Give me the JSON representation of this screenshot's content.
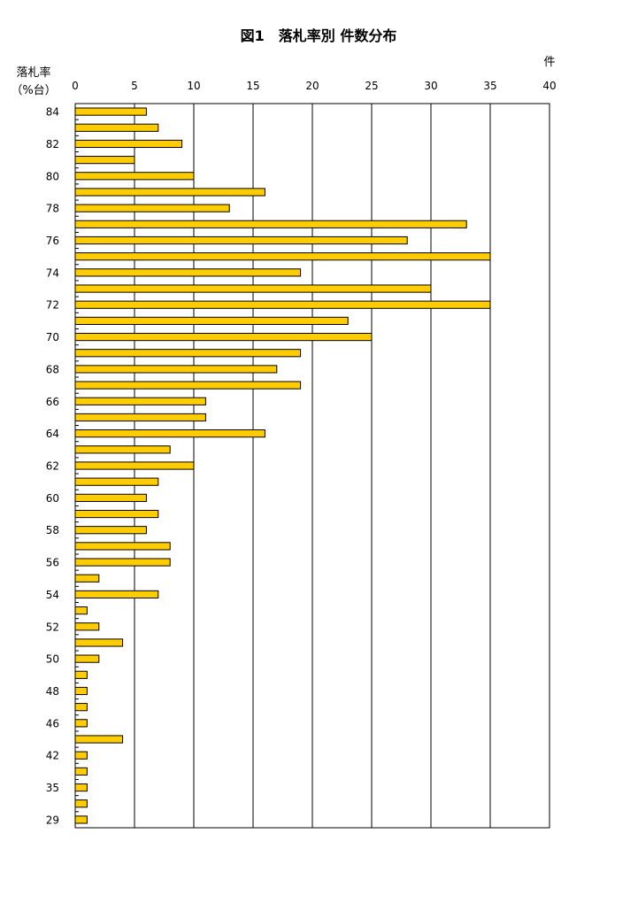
{
  "chart_data": {
    "type": "bar",
    "orientation": "horizontal",
    "title": "図1　落札率別 件数分布",
    "xlabel": "件",
    "ylabel_line1": "落札率",
    "ylabel_line2": "（%台）",
    "xlim": [
      0,
      40
    ],
    "x_ticks": [
      "0",
      "5",
      "10",
      "15",
      "20",
      "25",
      "30",
      "35",
      "40"
    ],
    "grid": true,
    "bar_color": "#ffcc00",
    "bar_edge_color": "#000000",
    "category_labels": [
      "84",
      "82",
      "80",
      "78",
      "76",
      "74",
      "72",
      "70",
      "68",
      "66",
      "64",
      "62",
      "60",
      "58",
      "56",
      "54",
      "52",
      "50",
      "48",
      "46",
      "42",
      "35",
      "29"
    ],
    "values": [
      6,
      7,
      9,
      5,
      10,
      16,
      13,
      33,
      28,
      35,
      19,
      30,
      35,
      23,
      25,
      19,
      17,
      19,
      11,
      11,
      16,
      8,
      10,
      7,
      6,
      7,
      6,
      8,
      8,
      2,
      7,
      1,
      2,
      4,
      2,
      1,
      1,
      1,
      1,
      4,
      1,
      1,
      1,
      1,
      1
    ]
  }
}
